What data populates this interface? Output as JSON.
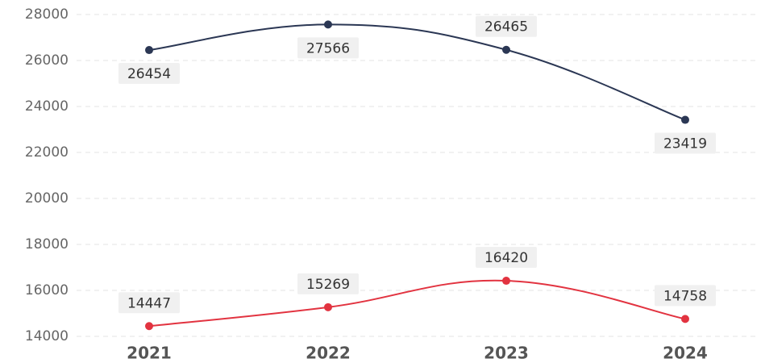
{
  "chart_data": {
    "type": "line",
    "categories": [
      "2021",
      "2022",
      "2023",
      "2024"
    ],
    "series": [
      {
        "color": "#2b3754",
        "values": [
          26454,
          27566,
          26465,
          23419
        ]
      },
      {
        "color": "#e23340",
        "values": [
          14447,
          15269,
          16420,
          14758
        ]
      }
    ],
    "ylim": [
      14000,
      28000
    ],
    "yticks": [
      14000,
      16000,
      18000,
      20000,
      22000,
      24000,
      26000,
      28000
    ],
    "grid": true
  }
}
